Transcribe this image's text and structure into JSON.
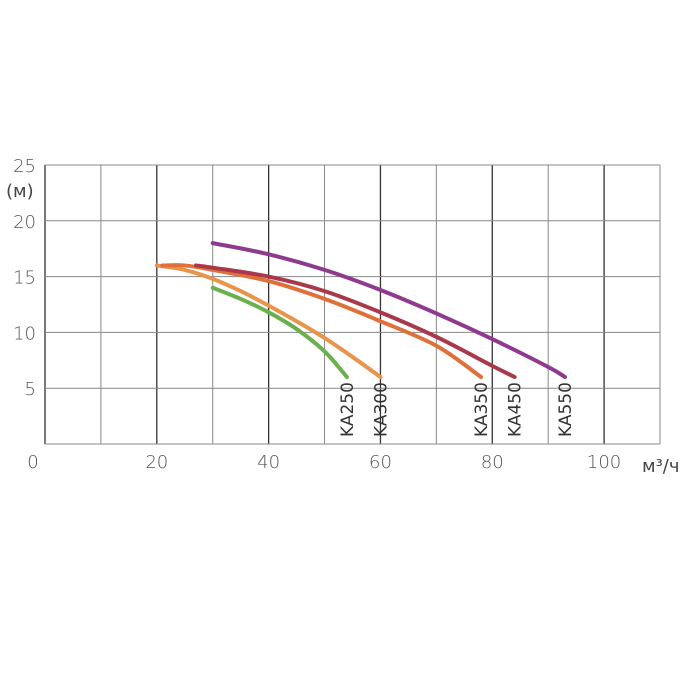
{
  "chart_data": {
    "type": "line",
    "x_unit": "м³/ч",
    "y_unit": "(м)",
    "xlim": [
      0,
      110
    ],
    "ylim": [
      0,
      25
    ],
    "x_ticks": [
      0,
      20,
      40,
      60,
      80,
      100
    ],
    "y_ticks": [
      5,
      10,
      15,
      20,
      25
    ],
    "grid": true,
    "series": [
      {
        "name": "KA250",
        "color": "#6ab04c",
        "x": [
          30,
          35,
          40,
          45,
          50,
          54
        ],
        "y": [
          14,
          13,
          11.8,
          10.3,
          8.3,
          6
        ]
      },
      {
        "name": "KA300",
        "color": "#e8944a",
        "x": [
          20,
          25,
          30,
          35,
          40,
          45,
          50,
          55,
          60
        ],
        "y": [
          16,
          15.6,
          14.8,
          13.7,
          12.4,
          11,
          9.5,
          7.8,
          6
        ]
      },
      {
        "name": "KA350",
        "color": "#e0703a",
        "x": [
          21,
          25,
          30,
          40,
          50,
          60,
          70,
          78
        ],
        "y": [
          16,
          16,
          15.6,
          14.6,
          13,
          11,
          8.8,
          6
        ]
      },
      {
        "name": "KA450",
        "color": "#a8384a",
        "x": [
          27,
          30,
          40,
          50,
          60,
          70,
          80,
          84
        ],
        "y": [
          16,
          15.8,
          15,
          13.7,
          11.8,
          9.6,
          7,
          6
        ]
      },
      {
        "name": "KA550",
        "color": "#8e3a8e",
        "x": [
          30,
          40,
          50,
          60,
          70,
          80,
          90,
          93
        ],
        "y": [
          18,
          17,
          15.6,
          13.8,
          11.7,
          9.4,
          6.9,
          6
        ]
      }
    ]
  }
}
